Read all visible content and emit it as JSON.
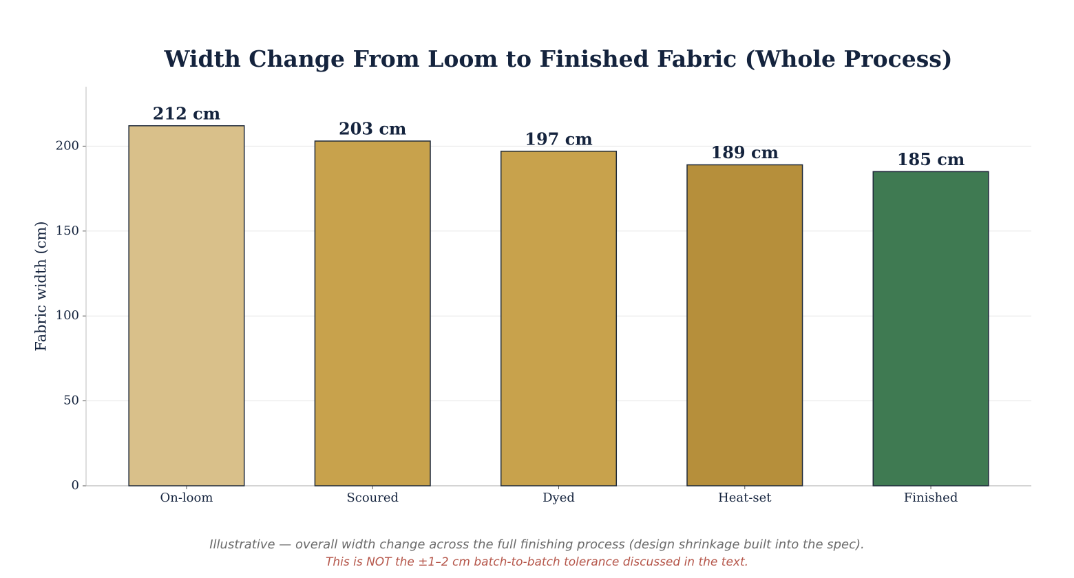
{
  "chart_data": {
    "type": "bar",
    "title": "Width Change From Loom to Finished Fabric (Whole Process)",
    "y_label": "Fabric width (cm)",
    "categories": [
      "On-loom",
      "Scoured",
      "Dyed",
      "Heat-set",
      "Finished"
    ],
    "values": [
      212,
      203,
      197,
      189,
      185
    ],
    "value_labels": [
      "212 cm",
      "203 cm",
      "197 cm",
      "189 cm",
      "185 cm"
    ],
    "colors": [
      "#d9c08a",
      "#c8a24c",
      "#c8a24c",
      "#b68f3b",
      "#3f7a52"
    ],
    "ylim": [
      0,
      235
    ],
    "yticks": [
      0,
      50,
      100,
      150,
      200
    ],
    "grid": true,
    "notes": [
      "Illustrative — overall width change across the full finishing process (design shrinkage built into the spec).",
      "This is NOT the ±1–2 cm batch-to-batch tolerance discussed in the text."
    ]
  }
}
